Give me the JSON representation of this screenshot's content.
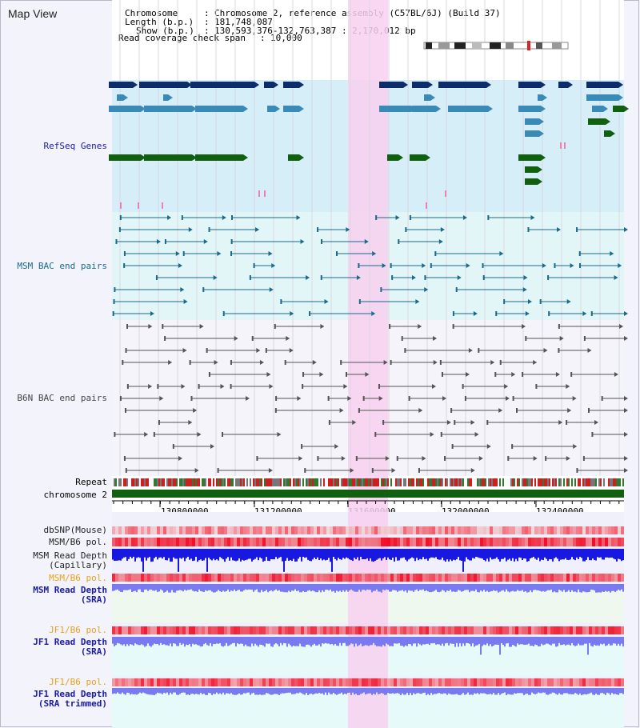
{
  "window_title": "Map View",
  "info": {
    "chromosome_label": "Chromosome",
    "chromosome_value": "Chromosome 2, reference assembly (C57BL/6J) (Build 37)",
    "length_label": "Length (b.p.)",
    "length_value": "181,748,087",
    "show_label": "Show (b.p.)",
    "show_value": "130,593,376-132,763,387 : 2,170,012 bp",
    "coverage_label": "Read coverage check span",
    "coverage_value": "10,000"
  },
  "tracks": {
    "refseq": {
      "label": "RefSeq Genes",
      "color": "#1a1aa8"
    },
    "msm_bac": {
      "label": "MSM BAC end pairs",
      "color": "#1a7a9a"
    },
    "b6n_bac": {
      "label": "B6N BAC end pairs",
      "color": "#444444"
    },
    "repeat": {
      "label": "Repeat"
    },
    "chromosome": {
      "label": "chromosome 2"
    },
    "dbsnp": {
      "label": "dbSNP(Mouse)"
    },
    "msm_pol": {
      "label": "MSM/B6 pol."
    },
    "msm_cap_l1": "MSM Read Depth",
    "msm_cap_l2": "(Capillary)",
    "msm_sra_pol": {
      "label": "MSM/B6 pol.",
      "color": "#e8a020"
    },
    "msm_sra_l1": "MSM Read Depth",
    "msm_sra_l2": "(SRA)",
    "jf1_pol": {
      "label": "JF1/B6 pol.",
      "color": "#e8a020"
    },
    "jf1_l1": "JF1 Read Depth",
    "jf1_l2": "(SRA)",
    "jf1t_pol": {
      "label": "JF1/B6 pol.",
      "color": "#e8a020"
    },
    "jf1t_l1": "JF1 Read Depth",
    "jf1t_l2": "(SRA trimmed)"
  },
  "axis_ticks": [
    "130800000",
    "131200000",
    "131600000",
    "132000000",
    "132400000"
  ],
  "colors": {
    "highlight": "#f8d0f0",
    "refseq_bg": "#d6eef8",
    "bac_bg": "#e2f6f8",
    "dark_gene": "#0c2c6a",
    "mid_gene": "#3a8ab8",
    "green_gene": "#106010",
    "depth_blue": "#1818e0",
    "depth_light": "#7a7af0"
  }
}
